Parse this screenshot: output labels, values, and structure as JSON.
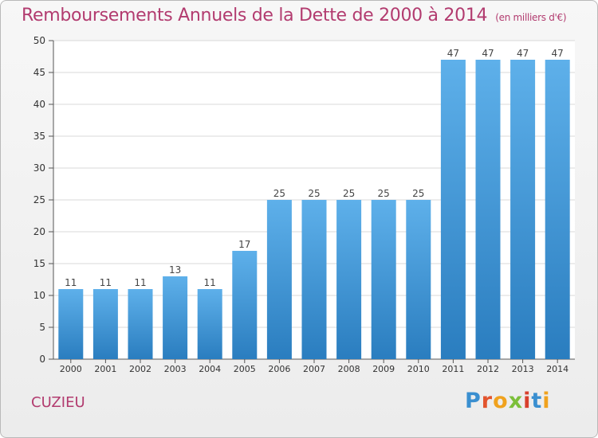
{
  "title": "Remboursements Annuels de la Dette de 2000 à 2014",
  "unit_label": "(en milliers d'€)",
  "place_name": "CUZIEU",
  "logo_text": "Proxiti",
  "colors": {
    "accent": "#b23b6f",
    "bar_top": "#5eb0ea",
    "bar_bottom": "#2a7dbf"
  },
  "chart_data": {
    "type": "bar",
    "categories": [
      "2000",
      "2001",
      "2002",
      "2003",
      "2004",
      "2005",
      "2006",
      "2007",
      "2008",
      "2009",
      "2010",
      "2011",
      "2012",
      "2013",
      "2014"
    ],
    "values": [
      11,
      11,
      11,
      13,
      11,
      17,
      25,
      25,
      25,
      25,
      25,
      47,
      47,
      47,
      47
    ],
    "ylim": [
      0,
      50
    ],
    "yticks": [
      0,
      5,
      10,
      15,
      20,
      25,
      30,
      35,
      40,
      45,
      50
    ],
    "grid": true
  }
}
